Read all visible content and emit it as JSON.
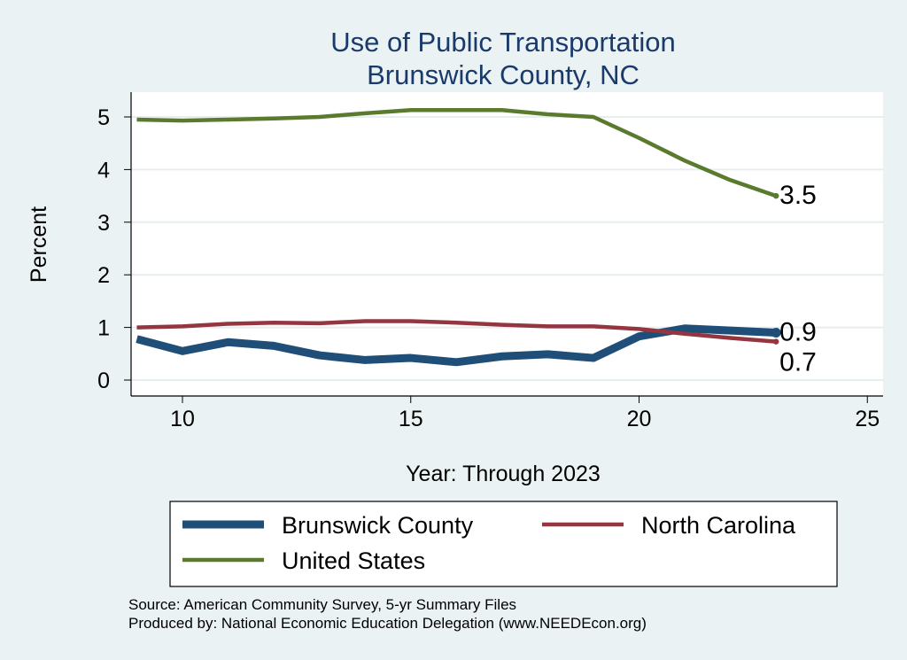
{
  "chart_data": {
    "type": "line",
    "title": "Use of Public Transportation",
    "subtitle": "Brunswick County, NC",
    "xlabel": "Year: Through 2023",
    "ylabel": "Percent",
    "xlim": [
      8.7,
      25.3
    ],
    "ylim": [
      -0.3,
      5.5
    ],
    "xticks": [
      10,
      15,
      20,
      25
    ],
    "yticks": [
      0,
      1,
      2,
      3,
      4,
      5
    ],
    "grid": true,
    "legend_position": "bottom",
    "x": [
      9,
      10,
      11,
      12,
      13,
      14,
      15,
      16,
      17,
      18,
      19,
      20,
      21,
      22,
      23
    ],
    "series": [
      {
        "name": "Brunswick County",
        "color": "#1f4e79",
        "width": 9,
        "values": [
          0.78,
          0.55,
          0.72,
          0.65,
          0.47,
          0.38,
          0.42,
          0.34,
          0.45,
          0.49,
          0.42,
          0.83,
          0.98,
          0.94,
          0.9
        ],
        "end_label": "0.9"
      },
      {
        "name": "North Carolina",
        "color": "#943540",
        "width": 4.5,
        "values": [
          1.0,
          1.02,
          1.07,
          1.09,
          1.08,
          1.12,
          1.12,
          1.09,
          1.05,
          1.02,
          1.02,
          0.97,
          0.88,
          0.8,
          0.73
        ],
        "end_label": "0.7"
      },
      {
        "name": "United States",
        "color": "#5a7a2e",
        "width": 4.5,
        "values": [
          4.95,
          4.93,
          4.95,
          4.97,
          5.0,
          5.07,
          5.13,
          5.13,
          5.13,
          5.05,
          5.0,
          4.6,
          4.17,
          3.8,
          3.5
        ],
        "end_label": "3.5"
      }
    ],
    "notes": [
      "Source: American Community Survey, 5-yr Summary Files",
      "Produced by: National Economic Education Delegation (www.NEEDEcon.org)"
    ]
  }
}
